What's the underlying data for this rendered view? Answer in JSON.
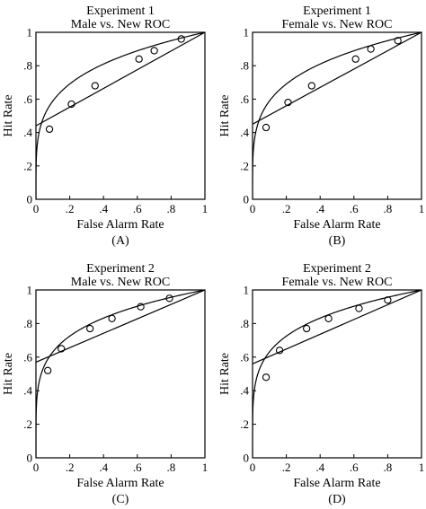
{
  "chart_data": [
    {
      "type": "scatter",
      "panel_label": "(A)",
      "title_line1": "Experiment 1",
      "title_line2": "Male vs. New ROC",
      "xlabel": "False Alarm Rate",
      "ylabel": "Hit Rate",
      "xlim": [
        0,
        1
      ],
      "ylim": [
        0,
        1
      ],
      "xticks": [
        "0",
        ".2",
        ".4",
        ".6",
        ".8",
        "1"
      ],
      "yticks": [
        "0",
        ".2",
        ".4",
        ".6",
        ".8",
        "1"
      ],
      "points": [
        [
          0.08,
          0.42
        ],
        [
          0.21,
          0.57
        ],
        [
          0.35,
          0.68
        ],
        [
          0.61,
          0.84
        ],
        [
          0.7,
          0.89
        ],
        [
          0.86,
          0.96
        ]
      ],
      "line": {
        "intercept": 0.44,
        "slope": 0.56
      },
      "curve": {
        "exponent": 0.23
      }
    },
    {
      "type": "scatter",
      "panel_label": "(B)",
      "title_line1": "Experiment 1",
      "title_line2": "Female vs. New ROC",
      "xlabel": "False Alarm Rate",
      "ylabel": "Hit Rate",
      "xlim": [
        0,
        1
      ],
      "ylim": [
        0,
        1
      ],
      "xticks": [
        "0",
        ".2",
        ".4",
        ".6",
        ".8",
        "1"
      ],
      "yticks": [
        "0",
        ".2",
        ".4",
        ".6",
        ".8",
        "1"
      ],
      "points": [
        [
          0.08,
          0.43
        ],
        [
          0.21,
          0.58
        ],
        [
          0.35,
          0.68
        ],
        [
          0.61,
          0.84
        ],
        [
          0.7,
          0.9
        ],
        [
          0.86,
          0.95
        ]
      ],
      "line": {
        "intercept": 0.45,
        "slope": 0.55
      },
      "curve": {
        "exponent": 0.23
      }
    },
    {
      "type": "scatter",
      "panel_label": "(C)",
      "title_line1": "Experiment 2",
      "title_line2": "Male vs. New ROC",
      "xlabel": "False Alarm Rate",
      "ylabel": "Hit Rate",
      "xlim": [
        0,
        1
      ],
      "ylim": [
        0,
        1
      ],
      "xticks": [
        "0",
        ".2",
        ".4",
        ".6",
        ".8",
        "1"
      ],
      "yticks": [
        "0",
        ".2",
        ".4",
        ".6",
        ".8",
        "1"
      ],
      "points": [
        [
          0.07,
          0.52
        ],
        [
          0.15,
          0.65
        ],
        [
          0.32,
          0.77
        ],
        [
          0.45,
          0.83
        ],
        [
          0.62,
          0.9
        ],
        [
          0.79,
          0.95
        ]
      ],
      "line": {
        "intercept": 0.57,
        "slope": 0.43
      },
      "curve": {
        "exponent": 0.2
      }
    },
    {
      "type": "scatter",
      "panel_label": "(D)",
      "title_line1": "Experiment 2",
      "title_line2": "Female vs. New ROC",
      "xlabel": "False Alarm Rate",
      "ylabel": "Hit Rate",
      "xlim": [
        0,
        1
      ],
      "ylim": [
        0,
        1
      ],
      "xticks": [
        "0",
        ".2",
        ".4",
        ".6",
        ".8",
        "1"
      ],
      "yticks": [
        "0",
        ".2",
        ".4",
        ".6",
        ".8",
        "1"
      ],
      "points": [
        [
          0.08,
          0.48
        ],
        [
          0.16,
          0.64
        ],
        [
          0.32,
          0.77
        ],
        [
          0.45,
          0.83
        ],
        [
          0.63,
          0.89
        ],
        [
          0.8,
          0.94
        ]
      ],
      "line": {
        "intercept": 0.56,
        "slope": 0.44
      },
      "curve": {
        "exponent": 0.2
      }
    }
  ]
}
